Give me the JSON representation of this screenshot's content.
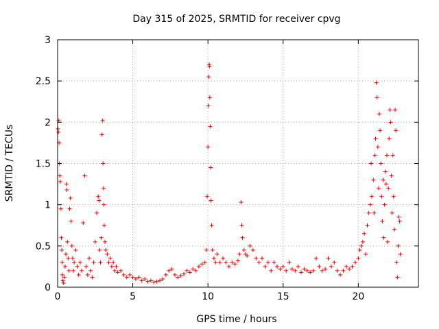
{
  "chart_data": {
    "type": "scatter",
    "title": "Day 315 of 2025, SRMTID for receiver cpvg",
    "xlabel": "GPS time / hours",
    "ylabel": "SRMTID / TECUs",
    "xlim": [
      0,
      24
    ],
    "ylim": [
      0,
      3
    ],
    "xticks": [
      0,
      5,
      10,
      15,
      20
    ],
    "xtick_labels": [
      "0",
      "5",
      "10",
      "15",
      "20"
    ],
    "yticks": [
      0,
      0.5,
      1,
      1.5,
      2,
      2.5,
      3
    ],
    "ytick_labels": [
      "0",
      "0.5",
      "1",
      "1.5",
      "2",
      "2.5",
      "3"
    ],
    "grid": true,
    "marker": "+",
    "color": "#e00000",
    "series": [
      {
        "name": "SRMTID",
        "points": [
          [
            0.02,
            1.92
          ],
          [
            0.05,
            1.88
          ],
          [
            0.08,
            2.02
          ],
          [
            0.1,
            1.75
          ],
          [
            0.12,
            1.5
          ],
          [
            0.15,
            1.35
          ],
          [
            0.18,
            1.28
          ],
          [
            0.22,
            0.95
          ],
          [
            0.25,
            0.6
          ],
          [
            0.28,
            0.45
          ],
          [
            0.3,
            0.3
          ],
          [
            0.32,
            0.15
          ],
          [
            0.35,
            0.08
          ],
          [
            0.4,
            0.05
          ],
          [
            0.45,
            0.12
          ],
          [
            0.5,
            0.25
          ],
          [
            0.55,
            0.4
          ],
          [
            0.58,
            1.25
          ],
          [
            0.62,
            1.18
          ],
          [
            0.65,
            0.55
          ],
          [
            0.7,
            0.35
          ],
          [
            0.75,
            0.2
          ],
          [
            0.8,
            0.95
          ],
          [
            0.85,
            1.08
          ],
          [
            0.9,
            0.8
          ],
          [
            0.95,
            0.5
          ],
          [
            1.0,
            0.35
          ],
          [
            1.05,
            0.2
          ],
          [
            1.1,
            0.3
          ],
          [
            1.2,
            0.45
          ],
          [
            1.3,
            0.25
          ],
          [
            1.4,
            0.15
          ],
          [
            1.5,
            0.3
          ],
          [
            1.6,
            0.2
          ],
          [
            1.7,
            0.78
          ],
          [
            1.8,
            1.35
          ],
          [
            1.9,
            0.25
          ],
          [
            2.0,
            0.15
          ],
          [
            2.1,
            0.35
          ],
          [
            2.2,
            0.2
          ],
          [
            2.3,
            0.12
          ],
          [
            2.4,
            0.3
          ],
          [
            2.5,
            0.55
          ],
          [
            2.6,
            0.9
          ],
          [
            2.7,
            1.1
          ],
          [
            2.75,
            1.05
          ],
          [
            2.8,
            0.45
          ],
          [
            2.85,
            0.3
          ],
          [
            2.9,
            0.6
          ],
          [
            2.95,
            1.85
          ],
          [
            3.0,
            2.02
          ],
          [
            3.02,
            1.5
          ],
          [
            3.05,
            1.2
          ],
          [
            3.08,
            1.0
          ],
          [
            3.1,
            0.75
          ],
          [
            3.15,
            0.55
          ],
          [
            3.2,
            0.45
          ],
          [
            3.3,
            0.4
          ],
          [
            3.4,
            0.3
          ],
          [
            3.5,
            0.35
          ],
          [
            3.6,
            0.25
          ],
          [
            3.7,
            0.3
          ],
          [
            3.8,
            0.2
          ],
          [
            3.9,
            0.25
          ],
          [
            4.0,
            0.18
          ],
          [
            4.2,
            0.2
          ],
          [
            4.4,
            0.15
          ],
          [
            4.6,
            0.12
          ],
          [
            4.8,
            0.15
          ],
          [
            5.0,
            0.12
          ],
          [
            5.2,
            0.1
          ],
          [
            5.4,
            0.12
          ],
          [
            5.6,
            0.08
          ],
          [
            5.8,
            0.1
          ],
          [
            6.0,
            0.07
          ],
          [
            6.2,
            0.08
          ],
          [
            6.4,
            0.06
          ],
          [
            6.6,
            0.07
          ],
          [
            6.8,
            0.08
          ],
          [
            7.0,
            0.1
          ],
          [
            7.2,
            0.15
          ],
          [
            7.4,
            0.2
          ],
          [
            7.6,
            0.22
          ],
          [
            7.8,
            0.15
          ],
          [
            8.0,
            0.12
          ],
          [
            8.2,
            0.14
          ],
          [
            8.4,
            0.16
          ],
          [
            8.6,
            0.2
          ],
          [
            8.8,
            0.18
          ],
          [
            9.0,
            0.22
          ],
          [
            9.2,
            0.2
          ],
          [
            9.4,
            0.25
          ],
          [
            9.6,
            0.28
          ],
          [
            9.8,
            0.3
          ],
          [
            9.9,
            0.45
          ],
          [
            9.95,
            1.1
          ],
          [
            10.0,
            1.7
          ],
          [
            10.02,
            2.2
          ],
          [
            10.05,
            2.55
          ],
          [
            10.08,
            2.7
          ],
          [
            10.1,
            2.68
          ],
          [
            10.12,
            2.3
          ],
          [
            10.15,
            1.95
          ],
          [
            10.18,
            1.45
          ],
          [
            10.2,
            1.05
          ],
          [
            10.25,
            0.75
          ],
          [
            10.3,
            0.45
          ],
          [
            10.4,
            0.35
          ],
          [
            10.5,
            0.3
          ],
          [
            10.6,
            0.4
          ],
          [
            10.8,
            0.3
          ],
          [
            11.0,
            0.35
          ],
          [
            11.2,
            0.3
          ],
          [
            11.4,
            0.25
          ],
          [
            11.6,
            0.3
          ],
          [
            11.8,
            0.28
          ],
          [
            12.0,
            0.32
          ],
          [
            12.1,
            0.4
          ],
          [
            12.2,
            1.03
          ],
          [
            12.25,
            0.75
          ],
          [
            12.3,
            0.6
          ],
          [
            12.4,
            0.45
          ],
          [
            12.5,
            0.4
          ],
          [
            12.6,
            0.38
          ],
          [
            12.8,
            0.5
          ],
          [
            13.0,
            0.45
          ],
          [
            13.2,
            0.35
          ],
          [
            13.4,
            0.3
          ],
          [
            13.6,
            0.35
          ],
          [
            13.8,
            0.25
          ],
          [
            14.0,
            0.3
          ],
          [
            14.2,
            0.2
          ],
          [
            14.4,
            0.3
          ],
          [
            14.6,
            0.25
          ],
          [
            14.8,
            0.22
          ],
          [
            15.0,
            0.25
          ],
          [
            15.2,
            0.2
          ],
          [
            15.4,
            0.3
          ],
          [
            15.6,
            0.22
          ],
          [
            15.8,
            0.2
          ],
          [
            16.0,
            0.25
          ],
          [
            16.2,
            0.18
          ],
          [
            16.4,
            0.22
          ],
          [
            16.6,
            0.2
          ],
          [
            16.8,
            0.18
          ],
          [
            17.0,
            0.2
          ],
          [
            17.2,
            0.35
          ],
          [
            17.4,
            0.25
          ],
          [
            17.6,
            0.2
          ],
          [
            17.8,
            0.22
          ],
          [
            18.0,
            0.35
          ],
          [
            18.2,
            0.25
          ],
          [
            18.4,
            0.3
          ],
          [
            18.6,
            0.2
          ],
          [
            18.8,
            0.15
          ],
          [
            19.0,
            0.2
          ],
          [
            19.2,
            0.25
          ],
          [
            19.4,
            0.22
          ],
          [
            19.6,
            0.25
          ],
          [
            19.8,
            0.3
          ],
          [
            20.0,
            0.35
          ],
          [
            20.1,
            0.45
          ],
          [
            20.2,
            0.5
          ],
          [
            20.3,
            0.55
          ],
          [
            20.4,
            0.65
          ],
          [
            20.5,
            0.4
          ],
          [
            20.6,
            0.75
          ],
          [
            20.7,
            0.9
          ],
          [
            20.8,
            1.0
          ],
          [
            20.85,
            1.5
          ],
          [
            20.9,
            1.1
          ],
          [
            21.0,
            1.3
          ],
          [
            21.05,
            0.9
          ],
          [
            21.1,
            1.6
          ],
          [
            21.15,
            1.8
          ],
          [
            21.2,
            2.48
          ],
          [
            21.25,
            2.3
          ],
          [
            21.3,
            1.7
          ],
          [
            21.35,
            1.2
          ],
          [
            21.4,
            2.1
          ],
          [
            21.45,
            1.9
          ],
          [
            21.5,
            1.5
          ],
          [
            21.55,
            1.1
          ],
          [
            21.6,
            0.8
          ],
          [
            21.65,
            1.3
          ],
          [
            21.7,
            0.6
          ],
          [
            21.75,
            1.0
          ],
          [
            21.8,
            1.4
          ],
          [
            21.85,
            1.25
          ],
          [
            21.9,
            1.6
          ],
          [
            21.95,
            0.55
          ],
          [
            22.0,
            1.2
          ],
          [
            22.05,
            1.8
          ],
          [
            22.1,
            2.15
          ],
          [
            22.15,
            2.0
          ],
          [
            22.2,
            1.35
          ],
          [
            22.25,
            0.9
          ],
          [
            22.3,
            1.6
          ],
          [
            22.35,
            1.1
          ],
          [
            22.4,
            0.7
          ],
          [
            22.45,
            2.15
          ],
          [
            22.5,
            1.9
          ],
          [
            22.55,
            0.3
          ],
          [
            22.6,
            0.12
          ],
          [
            22.65,
            0.5
          ],
          [
            22.7,
            0.85
          ],
          [
            22.75,
            0.8
          ],
          [
            22.8,
            0.4
          ]
        ]
      }
    ]
  }
}
